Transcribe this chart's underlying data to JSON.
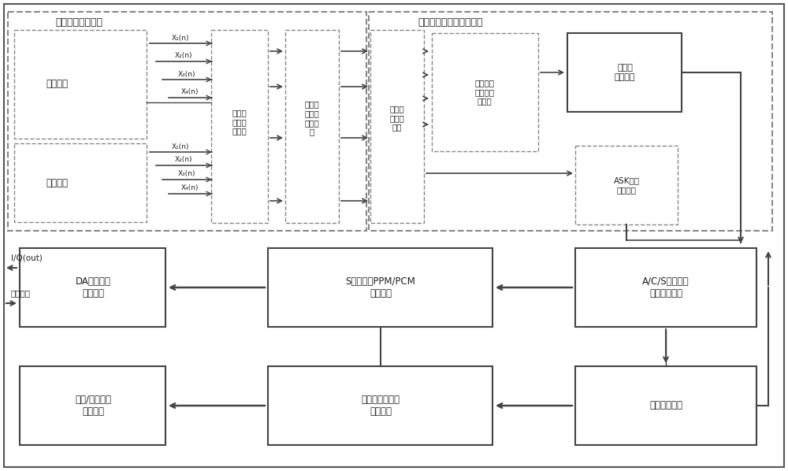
{
  "bg_color": "#ffffff",
  "text_color": "#222222",
  "arrow_color": "#444444",
  "dash_color": "#777777",
  "solid_color": "#444444",
  "title_left": "数字正交变换单元",
  "title_right": "数字正交信号预处理单元",
  "label_cx1": "测向信号",
  "label_cx2": "测向信号",
  "lbl_x1t": "X₁(n)",
  "lbl_x2t": "X₂(n)",
  "lbl_x3t": "X₃(n)",
  "lbl_x4t": "X₄(n)",
  "lbl_x1b": "X₁(n)",
  "lbl_x2b": "X₂(n)",
  "lbl_x3b": "X₃(n)",
  "lbl_x4b": "X₄(n)",
  "blk_filter": "数字带\n通滤波\n器模块",
  "blk_dzzo": "数字正\n交变换\n器组模\n块",
  "blk_feat": "信号特\n征提取\n模块",
  "blk_azimuth_calc": "询问信号\n方位角计\n算模块",
  "blk_ask": "ASK包络\n解调模块",
  "blk_az_meas": "方位角\n测量信号",
  "blk_da": "DA芯片数据\n配置单元",
  "blk_ppm": "S模式应答PPM/PCM\n编码单元",
  "blk_acs": "A/C/S模式询问\n信号解码单元",
  "blk_data": "数据处理单元",
  "blk_omni": "全向/定向天线\n控制单元",
  "blk_resp": "应答信号方位角\n控制单元",
  "lbl_iq": "I/Q(out)",
  "lbl_cfg": "配置数据"
}
